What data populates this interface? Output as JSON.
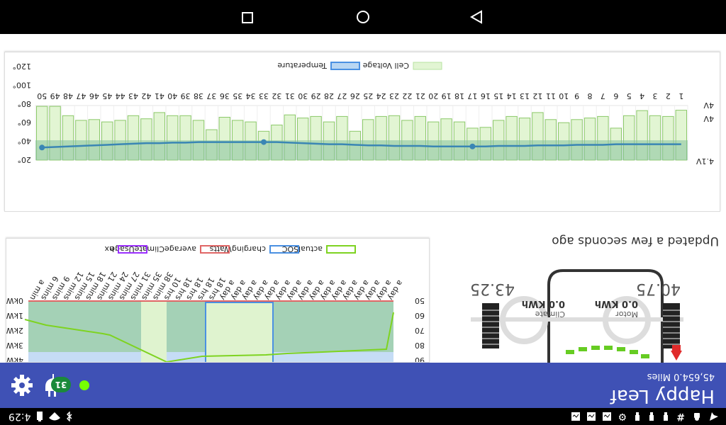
{
  "status": {
    "time": "4:29",
    "left_icons": [
      "telegram-icon",
      "android-icon",
      "hash-icon",
      "test-tube-icon",
      "test-tube-icon",
      "test-tube-icon",
      "gear-icon",
      "image-icon",
      "image-icon",
      "image-icon"
    ],
    "right_icons": [
      "bluetooth-icon",
      "wifi-icon",
      "battery-icon"
    ]
  },
  "appbar": {
    "title": "Happy Leaf",
    "subtitle": "45,654.0 Miles",
    "charging_count": "31",
    "online_color": "#76ff03"
  },
  "car": {
    "updated": "Updated a few seconds ago",
    "tire_front_left": "40.75",
    "tire_front_right": "43.25",
    "motor_kwh": "0.0 KWh",
    "motor_label": "Motor",
    "climate_kwh": "0.0 KWh",
    "climate_label": "Climate"
  },
  "soc_chart": {
    "legend": [
      "actualSOC",
      "chargingWatts",
      "averageClimateUsage",
      "hx"
    ],
    "legend_colors": [
      "#7ed321",
      "#4a90e2",
      "#e06666",
      "#9b30ff"
    ],
    "y_left_ticks": [
      "0kWh",
      "1kWh",
      "2kWh",
      "3kWh",
      "4kWh"
    ],
    "y_right_ticks": [
      "50",
      "60",
      "70",
      "80",
      "90"
    ],
    "x_labels": [
      "a day",
      "a day",
      "a day",
      "a day",
      "a day",
      "a day",
      "a day",
      "a day",
      "a day",
      "a day",
      "a day",
      "a day",
      "a day",
      "a day",
      "a day",
      "a day",
      "18 hrs",
      "18 hrs",
      "18 hrs",
      "18 hrs",
      "10 hrs",
      "38 mins",
      "35 mins",
      "31 mins",
      "27 mins",
      "24 mins",
      "21 mins",
      "18 mins",
      "15 mins",
      "12 mins",
      "9 mins",
      "6 mins",
      "a min"
    ]
  },
  "cell_chart": {
    "legend": [
      "Cell Voltage",
      "Temperature"
    ],
    "legend_colors": [
      "#b7e3a0",
      "#4a90e2"
    ],
    "y_left_ticks": [
      "4V",
      "4V",
      "4.1V"
    ],
    "y_right_ticks": [
      "20°",
      "40°",
      "60°",
      "80°",
      "100°",
      "120°"
    ],
    "x_labels": [
      "1",
      "2",
      "3",
      "4",
      "5",
      "6",
      "7",
      "8",
      "9",
      "10",
      "11",
      "12",
      "13",
      "14",
      "15",
      "16",
      "17",
      "18",
      "19",
      "20",
      "21",
      "22",
      "23",
      "24",
      "25",
      "26",
      "27",
      "28",
      "29",
      "30",
      "31",
      "32",
      "33",
      "34",
      "35",
      "36",
      "37",
      "38",
      "39",
      "40",
      "41",
      "42",
      "43",
      "44",
      "45",
      "46",
      "47",
      "48",
      "49",
      "50"
    ]
  },
  "chart_data": {
    "type": "bar",
    "title": "",
    "categories": [
      "1",
      "2",
      "3",
      "4",
      "5",
      "6",
      "7",
      "8",
      "9",
      "10",
      "11",
      "12",
      "13",
      "14",
      "15",
      "16",
      "17",
      "18",
      "19",
      "20",
      "21",
      "22",
      "23",
      "24",
      "25",
      "26",
      "27",
      "28",
      "29",
      "30",
      "31",
      "32",
      "33",
      "34",
      "35",
      "36",
      "37",
      "38",
      "39",
      "40",
      "41",
      "42",
      "43",
      "44",
      "45",
      "46",
      "47",
      "48",
      "49",
      "50"
    ],
    "series": [
      {
        "name": "Cell Voltage",
        "values": [
          0.88,
          0.72,
          0.74,
          0.87,
          0.74,
          0.42,
          0.72,
          0.68,
          0.64,
          0.56,
          0.64,
          0.82,
          0.68,
          0.72,
          0.62,
          0.44,
          0.42,
          0.58,
          0.66,
          0.58,
          0.72,
          0.62,
          0.74,
          0.72,
          0.64,
          0.34,
          0.72,
          0.58,
          0.72,
          0.68,
          0.76,
          0.5,
          0.34,
          0.58,
          0.62,
          0.7,
          0.38,
          0.62,
          0.74,
          0.74,
          0.82,
          0.66,
          0.74,
          0.62,
          0.58,
          0.64,
          0.62,
          0.74,
          0.98,
          0.98
        ]
      },
      {
        "name": "Temperature",
        "values": [
          49,
          49,
          49,
          49,
          49,
          49,
          48,
          48,
          48,
          47,
          47,
          47,
          46,
          46,
          46,
          45,
          45,
          45,
          45,
          45,
          46,
          46,
          46,
          47,
          47,
          48,
          49,
          49,
          50,
          51,
          52,
          53,
          53,
          53,
          53,
          53,
          53,
          53,
          52,
          52,
          51,
          51,
          50,
          49,
          48,
          47,
          46,
          45,
          44,
          43
        ]
      }
    ],
    "ylabel_left": "",
    "ylabel_right": "",
    "y_right_range": [
      20,
      120
    ]
  }
}
